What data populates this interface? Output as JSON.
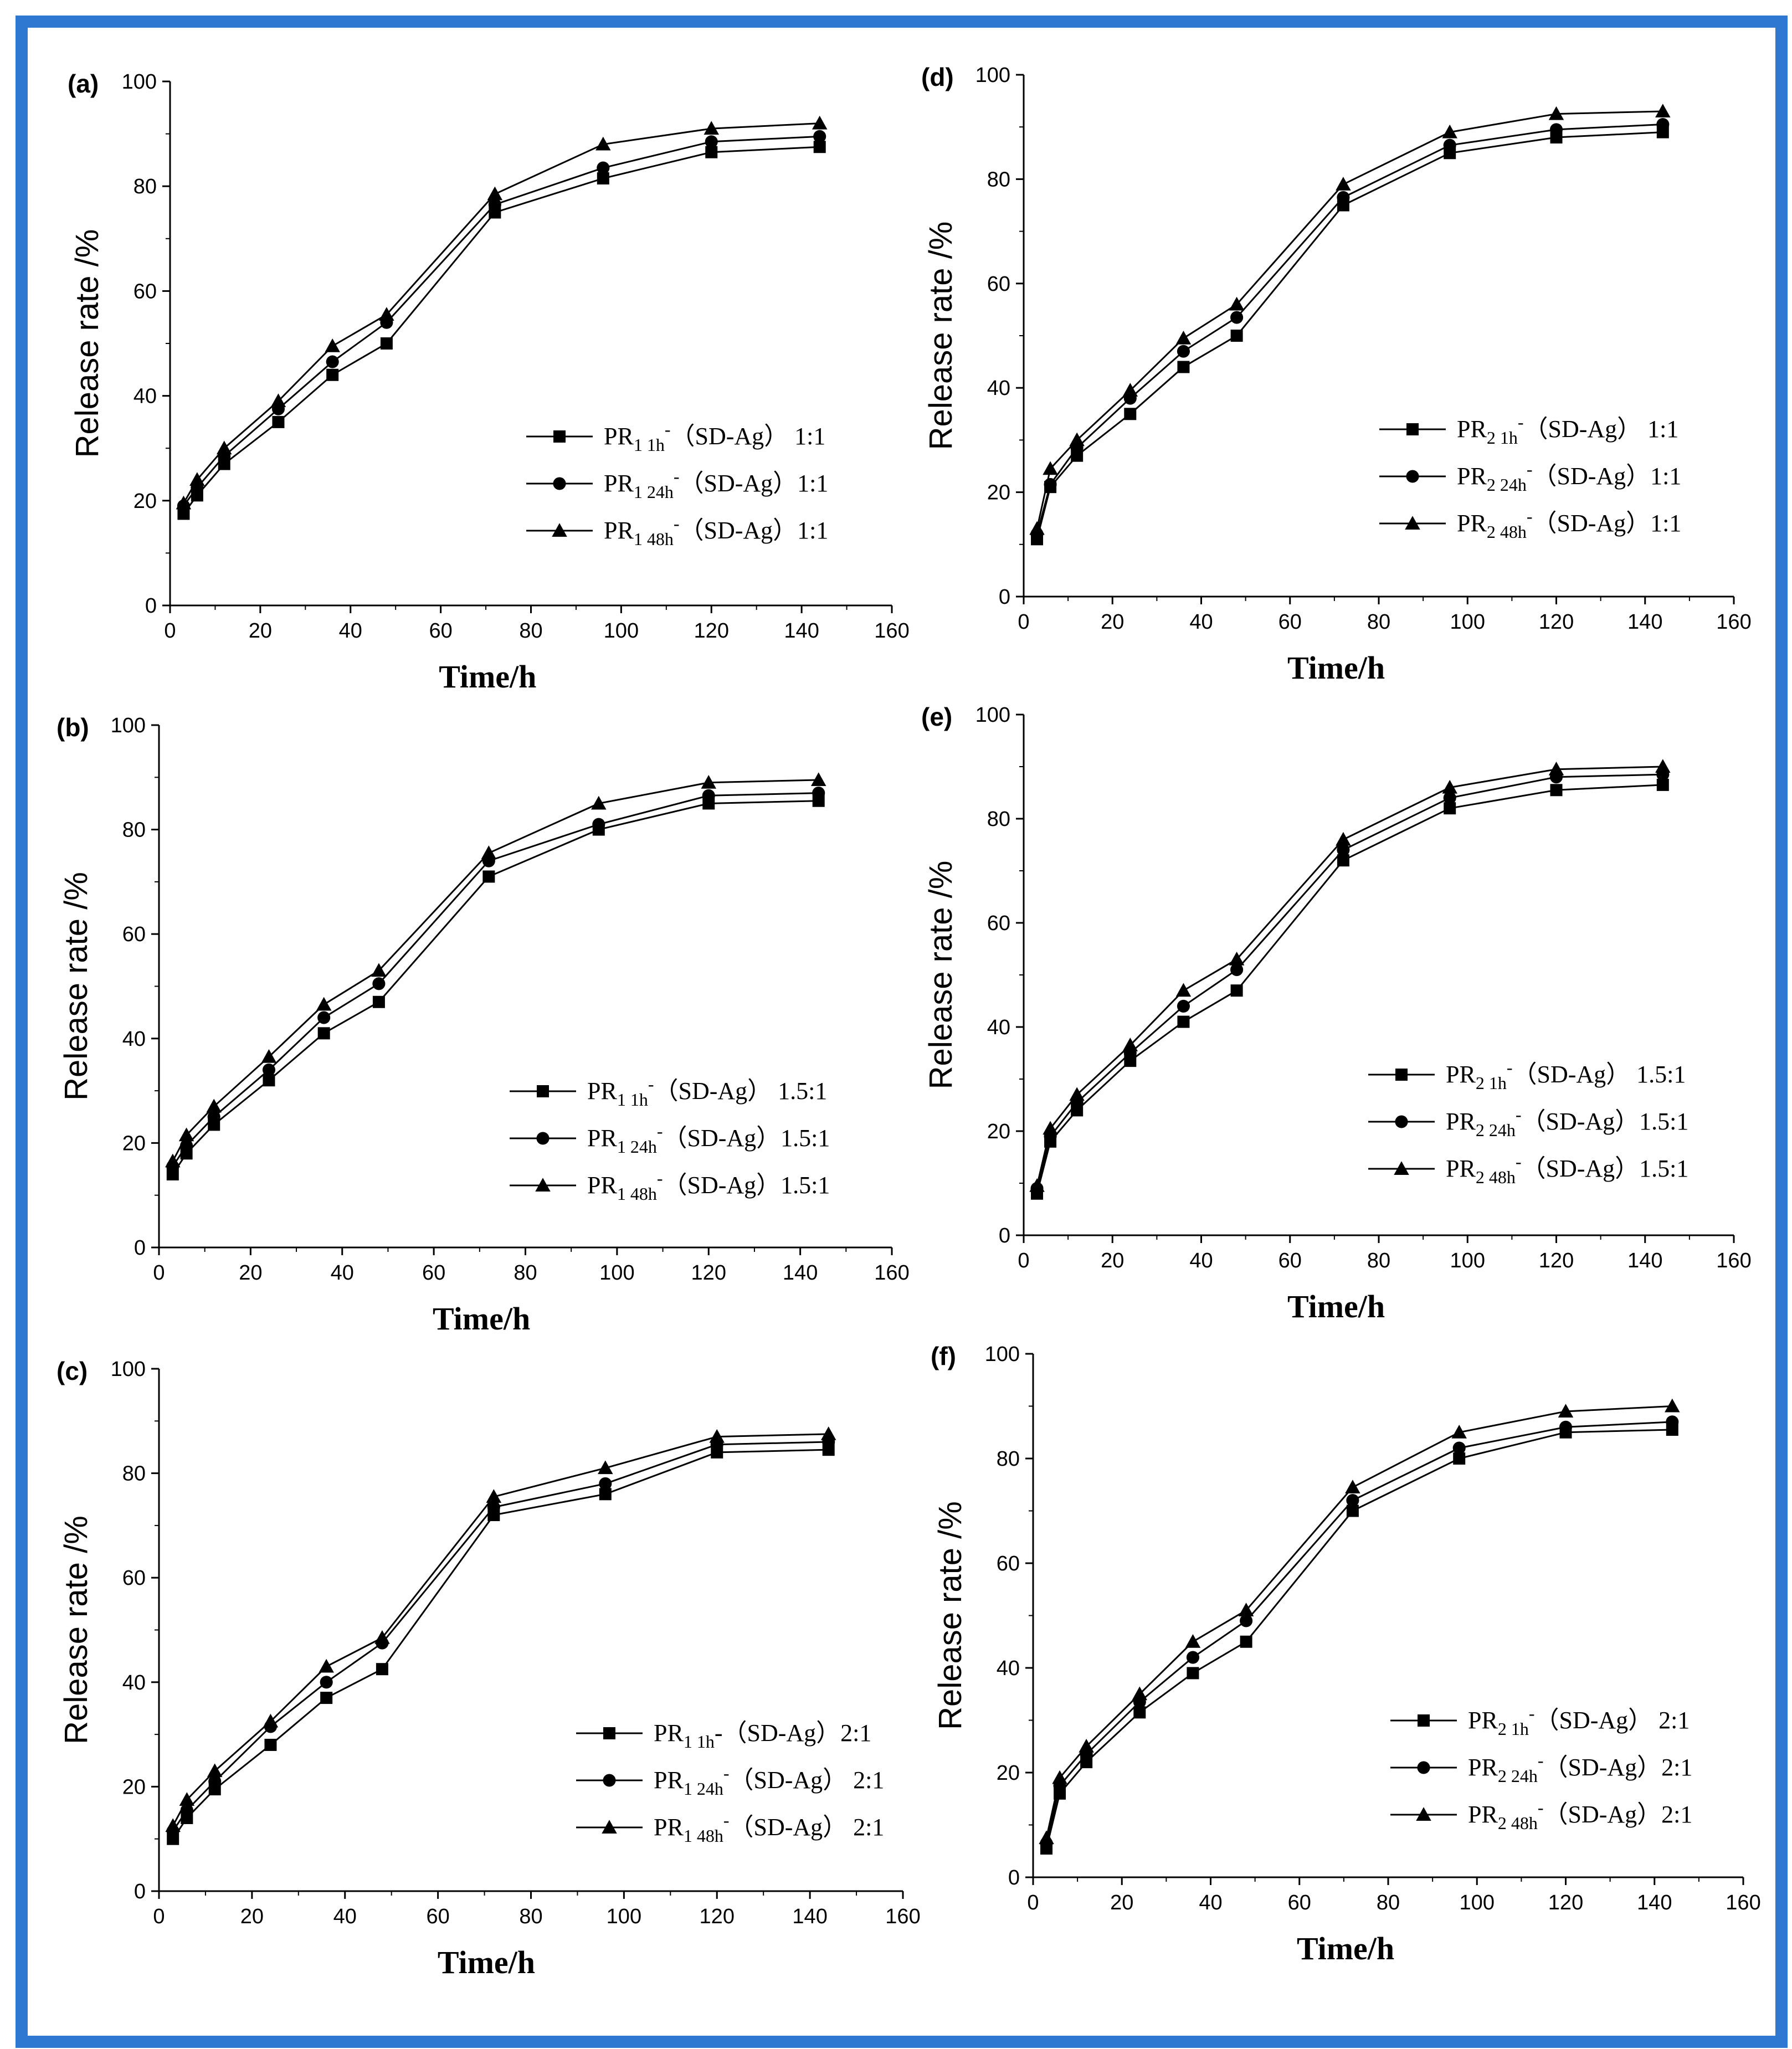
{
  "figure": {
    "frame_color": "#2e78d2",
    "line_color": "#000000",
    "marker_names": [
      "square",
      "circle",
      "triangle"
    ]
  },
  "chart_data": [
    {
      "panel": "(a)",
      "type": "line",
      "xlabel": "Time/h",
      "ylabel": "Release rate /%",
      "xlim": [
        0,
        160
      ],
      "ylim": [
        0,
        100
      ],
      "xticks": [
        "0",
        "20",
        "40",
        "60",
        "80",
        "100",
        "120",
        "140",
        "160"
      ],
      "yticks": [
        "0",
        "20",
        "40",
        "60",
        "80",
        "100"
      ],
      "x": [
        3,
        6,
        12,
        24,
        36,
        48,
        72,
        96,
        120,
        144
      ],
      "legend_position": "right",
      "series": [
        {
          "prefix": "PR",
          "sub": "1 1h",
          "sup": "-",
          "suffix": "（SD-Ag） 1:1",
          "values": [
            17.5,
            21,
            27,
            35,
            44,
            50,
            75,
            81.5,
            86.5,
            87.5
          ]
        },
        {
          "prefix": "PR",
          "sub": "1 24h",
          "sup": "-",
          "suffix": "（SD-Ag）1:1",
          "values": [
            19,
            22.5,
            28.5,
            37.5,
            46.5,
            54,
            76.5,
            83.5,
            88.5,
            89.5
          ]
        },
        {
          "prefix": "PR",
          "sub": "1 48h",
          "sup": "-",
          "suffix": "（SD-Ag）1:1",
          "values": [
            19.5,
            24,
            30,
            39,
            49.5,
            55.5,
            78.5,
            88,
            91,
            92
          ]
        }
      ]
    },
    {
      "panel": "(b)",
      "type": "line",
      "xlabel": "Time/h",
      "ylabel": "Release rate /%",
      "xlim": [
        0,
        160
      ],
      "ylim": [
        0,
        100
      ],
      "xticks": [
        "0",
        "20",
        "40",
        "60",
        "80",
        "100",
        "120",
        "140",
        "160"
      ],
      "yticks": [
        "0",
        "20",
        "40",
        "60",
        "80",
        "100"
      ],
      "x": [
        3,
        6,
        12,
        24,
        36,
        48,
        72,
        96,
        120,
        144
      ],
      "legend_position": "bottom-right",
      "series": [
        {
          "prefix": "PR",
          "sub": "1 1h",
          "sup": "-",
          "suffix": "（SD-Ag） 1.5:1",
          "values": [
            14,
            18,
            23.5,
            32,
            41,
            47,
            71,
            80,
            85,
            85.5
          ]
        },
        {
          "prefix": "PR",
          "sub": "1 24h",
          "sup": "-",
          "suffix": "（SD-Ag）1.5:1",
          "values": [
            15.5,
            19.5,
            25,
            34,
            44,
            50.5,
            74,
            81,
            86.5,
            87
          ]
        },
        {
          "prefix": "PR",
          "sub": "1 48h",
          "sup": "-",
          "suffix": "（SD-Ag）1.5:1",
          "values": [
            16.5,
            21.5,
            27,
            36.5,
            46.5,
            53,
            75.5,
            85,
            89,
            89.5
          ]
        }
      ]
    },
    {
      "panel": "(c)",
      "type": "line",
      "xlabel": "Time/h",
      "ylabel": "Release rate /%",
      "xlim": [
        0,
        160
      ],
      "ylim": [
        0,
        100
      ],
      "xticks": [
        "0",
        "20",
        "40",
        "60",
        "80",
        "100",
        "120",
        "140",
        "160"
      ],
      "yticks": [
        "0",
        "20",
        "40",
        "60",
        "80",
        "100"
      ],
      "x": [
        3,
        6,
        12,
        24,
        36,
        48,
        72,
        96,
        120,
        144
      ],
      "legend_position": "bottom-right",
      "series": [
        {
          "prefix": "PR",
          "sub": "1 1h",
          "sup": "",
          "suffix": "-（SD-Ag）2:1",
          "values": [
            10,
            14,
            19.5,
            28,
            37,
            42.5,
            72,
            76,
            84,
            84.5
          ]
        },
        {
          "prefix": "PR",
          "sub": "1 24h",
          "sup": "-",
          "suffix": "（SD-Ag） 2:1",
          "values": [
            11.5,
            15.5,
            21,
            31.5,
            40,
            47.5,
            73.5,
            78,
            85.5,
            86
          ]
        },
        {
          "prefix": "PR",
          "sub": "1 48h",
          "sup": "-",
          "suffix": "（SD-Ag） 2:1",
          "values": [
            12.5,
            17.5,
            23,
            32.5,
            43,
            48.5,
            75.5,
            81,
            87,
            87.5
          ]
        }
      ]
    },
    {
      "panel": "(d)",
      "type": "line",
      "xlabel": "Time/h",
      "ylabel": "Release rate /%",
      "xlim": [
        0,
        160
      ],
      "ylim": [
        0,
        100
      ],
      "xticks": [
        "0",
        "20",
        "40",
        "60",
        "80",
        "100",
        "120",
        "140",
        "160"
      ],
      "yticks": [
        "0",
        "20",
        "40",
        "60",
        "80",
        "100"
      ],
      "x": [
        3,
        6,
        12,
        24,
        36,
        48,
        72,
        96,
        120,
        144
      ],
      "legend_position": "right",
      "series": [
        {
          "prefix": "PR",
          "sub": "2 1h",
          "sup": "-",
          "suffix": "（SD-Ag） 1:1",
          "values": [
            11,
            21,
            27,
            35,
            44,
            50,
            75,
            85,
            88,
            89
          ]
        },
        {
          "prefix": "PR",
          "sub": "2 24h",
          "sup": "-",
          "suffix": "（SD-Ag）1:1",
          "values": [
            12,
            21.5,
            28.5,
            38,
            47,
            53.5,
            76.5,
            86.5,
            89.5,
            90.5
          ]
        },
        {
          "prefix": "PR",
          "sub": "2 48h",
          "sup": "-",
          "suffix": "（SD-Ag）1:1",
          "values": [
            13,
            24.5,
            30,
            39.5,
            49.5,
            56,
            79,
            89,
            92.5,
            93
          ]
        }
      ]
    },
    {
      "panel": "(e)",
      "type": "line",
      "xlabel": "Time/h",
      "ylabel": "Release rate /%",
      "xlim": [
        0,
        160
      ],
      "ylim": [
        0,
        100
      ],
      "xticks": [
        "0",
        "20",
        "40",
        "60",
        "80",
        "100",
        "120",
        "140",
        "160"
      ],
      "yticks": [
        "0",
        "20",
        "40",
        "60",
        "80",
        "100"
      ],
      "x": [
        3,
        6,
        12,
        24,
        36,
        48,
        72,
        96,
        120,
        144
      ],
      "legend_position": "bottom-right",
      "series": [
        {
          "prefix": "PR",
          "sub": "2 1h",
          "sup": "-",
          "suffix": "（SD-Ag） 1.5:1",
          "values": [
            8,
            18,
            24,
            33.5,
            41,
            47,
            72,
            82,
            85.5,
            86.5
          ]
        },
        {
          "prefix": "PR",
          "sub": "2 24h",
          "sup": "-",
          "suffix": "（SD-Ag）1.5:1",
          "values": [
            9,
            19,
            25.5,
            35,
            44,
            51,
            74,
            84,
            88,
            88.5
          ]
        },
        {
          "prefix": "PR",
          "sub": "2 48h",
          "sup": "-",
          "suffix": "（SD-Ag）1.5:1",
          "values": [
            9.5,
            20.5,
            27,
            36.5,
            47,
            53,
            76,
            86,
            89.5,
            90
          ]
        }
      ]
    },
    {
      "panel": "(f)",
      "type": "line",
      "xlabel": "Time/h",
      "ylabel": "Release rate /%",
      "xlim": [
        0,
        160
      ],
      "ylim": [
        0,
        100
      ],
      "xticks": [
        "0",
        "20",
        "40",
        "60",
        "80",
        "100",
        "120",
        "140",
        "160"
      ],
      "yticks": [
        "0",
        "20",
        "40",
        "60",
        "80",
        "100"
      ],
      "x": [
        3,
        6,
        12,
        24,
        36,
        48,
        72,
        96,
        120,
        144
      ],
      "legend_position": "bottom-right",
      "series": [
        {
          "prefix": "PR",
          "sub": "2 1h",
          "sup": "-",
          "suffix": "（SD-Ag） 2:1",
          "values": [
            5.5,
            16,
            22,
            31.5,
            39,
            45,
            70,
            80,
            85,
            85.5
          ]
        },
        {
          "prefix": "PR",
          "sub": "2 24h",
          "sup": "-",
          "suffix": "（SD-Ag）2:1",
          "values": [
            6.5,
            17.5,
            23.5,
            33.5,
            42,
            49,
            72,
            82,
            86,
            87
          ]
        },
        {
          "prefix": "PR",
          "sub": "2 48h",
          "sup": "-",
          "suffix": "（SD-Ag）2:1",
          "values": [
            7.5,
            19,
            25,
            35,
            45,
            51,
            74.5,
            85,
            89,
            90
          ]
        }
      ]
    }
  ]
}
